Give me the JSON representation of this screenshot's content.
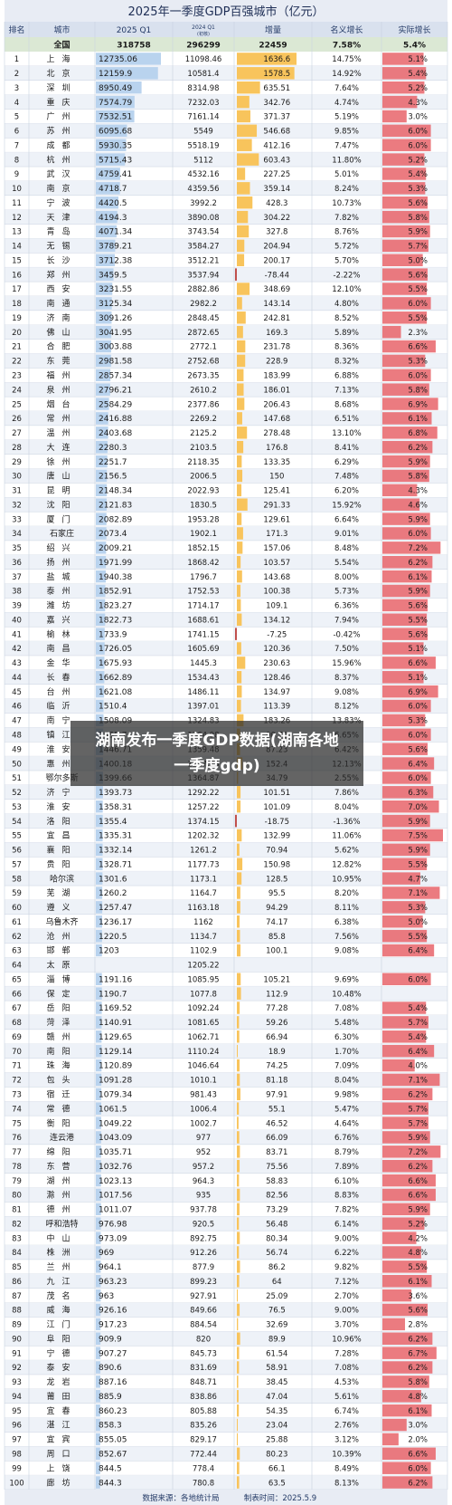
{
  "title": "2025年一季度GDP百强城市（亿元）",
  "chart_data": {
    "type": "table",
    "headers": {
      "rank": "排名",
      "city": "城市",
      "q1_2025": "2025 Q1",
      "q1_2024": "2024 Q1",
      "q1_2024_note": "(初核)",
      "increase": "增量",
      "nominal_growth": "名义增长",
      "real_growth": "实际增长"
    },
    "national": {
      "city": "全国",
      "q1_2025": "318758",
      "q1_2024": "296299",
      "increase": "22459",
      "nominal_growth": "7.58%",
      "real_growth": "5.4%"
    },
    "rows": [
      [
        "1",
        "上海",
        "12735.06",
        "11098.46",
        "1636.6",
        "14.75%",
        "5.1%"
      ],
      [
        "2",
        "北京",
        "12159.9",
        "10581.4",
        "1578.5",
        "14.92%",
        "5.4%"
      ],
      [
        "3",
        "深圳",
        "8950.49",
        "8314.98",
        "635.51",
        "7.64%",
        "5.2%"
      ],
      [
        "4",
        "重庆",
        "7574.79",
        "7232.03",
        "342.76",
        "4.74%",
        "4.3%"
      ],
      [
        "5",
        "广州",
        "7532.51",
        "7161.14",
        "371.37",
        "5.19%",
        "3.0%"
      ],
      [
        "6",
        "苏州",
        "6095.68",
        "5549",
        "546.68",
        "9.85%",
        "6.0%"
      ],
      [
        "7",
        "成都",
        "5930.35",
        "5518.19",
        "412.16",
        "7.47%",
        "6.0%"
      ],
      [
        "8",
        "杭州",
        "5715.43",
        "5112",
        "603.43",
        "11.80%",
        "5.2%"
      ],
      [
        "9",
        "武汉",
        "4759.41",
        "4532.16",
        "227.25",
        "5.01%",
        "5.4%"
      ],
      [
        "10",
        "南京",
        "4718.7",
        "4359.56",
        "359.14",
        "8.24%",
        "5.3%"
      ],
      [
        "11",
        "宁波",
        "4420.5",
        "3992.2",
        "428.3",
        "10.73%",
        "5.6%"
      ],
      [
        "12",
        "天津",
        "4194.3",
        "3890.08",
        "304.22",
        "7.82%",
        "5.8%"
      ],
      [
        "13",
        "青岛",
        "4071.34",
        "3743.54",
        "327.8",
        "8.76%",
        "5.9%"
      ],
      [
        "14",
        "无锡",
        "3789.21",
        "3584.27",
        "204.94",
        "5.72%",
        "5.7%"
      ],
      [
        "15",
        "长沙",
        "3712.38",
        "3512.21",
        "200.17",
        "5.70%",
        "5.0%"
      ],
      [
        "16",
        "郑州",
        "3459.5",
        "3537.94",
        "-78.44",
        "-2.22%",
        "5.6%"
      ],
      [
        "17",
        "西安",
        "3231.55",
        "2882.86",
        "348.69",
        "12.10%",
        "5.5%"
      ],
      [
        "18",
        "南通",
        "3125.34",
        "2982.2",
        "143.14",
        "4.80%",
        "6.0%"
      ],
      [
        "19",
        "济南",
        "3091.26",
        "2848.45",
        "242.81",
        "8.52%",
        "5.5%"
      ],
      [
        "20",
        "佛山",
        "3041.95",
        "2872.65",
        "169.3",
        "5.89%",
        "2.3%"
      ],
      [
        "21",
        "合肥",
        "3003.88",
        "2772.1",
        "231.78",
        "8.36%",
        "6.6%"
      ],
      [
        "22",
        "东莞",
        "2981.58",
        "2752.68",
        "228.9",
        "8.32%",
        "5.3%"
      ],
      [
        "23",
        "福州",
        "2857.34",
        "2673.35",
        "183.99",
        "6.88%",
        "6.0%"
      ],
      [
        "24",
        "泉州",
        "2796.21",
        "2610.2",
        "186.01",
        "7.13%",
        "5.8%"
      ],
      [
        "25",
        "烟台",
        "2584.29",
        "2377.86",
        "206.43",
        "8.68%",
        "6.9%"
      ],
      [
        "26",
        "常州",
        "2416.88",
        "2269.2",
        "147.68",
        "6.51%",
        "6.1%"
      ],
      [
        "27",
        "温州",
        "2403.68",
        "2125.2",
        "278.48",
        "13.10%",
        "6.8%"
      ],
      [
        "28",
        "大连",
        "2280.3",
        "2103.5",
        "176.8",
        "8.41%",
        "6.2%"
      ],
      [
        "29",
        "徐州",
        "2251.7",
        "2118.35",
        "133.35",
        "6.29%",
        "5.9%"
      ],
      [
        "30",
        "唐山",
        "2156.5",
        "2006.5",
        "150",
        "7.48%",
        "5.8%"
      ],
      [
        "31",
        "昆明",
        "2148.34",
        "2022.93",
        "125.41",
        "6.20%",
        "4.3%"
      ],
      [
        "32",
        "沈阳",
        "2121.83",
        "1830.5",
        "291.33",
        "15.92%",
        "4.6%"
      ],
      [
        "33",
        "厦门",
        "2082.89",
        "1953.28",
        "129.61",
        "6.64%",
        "5.9%"
      ],
      [
        "34",
        "石家庄",
        "2073.4",
        "1902.1",
        "171.3",
        "9.01%",
        "6.0%"
      ],
      [
        "35",
        "绍兴",
        "2009.21",
        "1852.15",
        "157.06",
        "8.48%",
        "7.2%"
      ],
      [
        "36",
        "扬州",
        "1971.99",
        "1868.42",
        "103.57",
        "5.54%",
        "6.2%"
      ],
      [
        "37",
        "盐城",
        "1940.38",
        "1796.7",
        "143.68",
        "8.00%",
        "6.1%"
      ],
      [
        "38",
        "泰州",
        "1852.91",
        "1752.53",
        "100.38",
        "5.73%",
        "5.9%"
      ],
      [
        "39",
        "潍坊",
        "1823.27",
        "1714.17",
        "109.1",
        "6.36%",
        "5.6%"
      ],
      [
        "40",
        "嘉兴",
        "1822.73",
        "1688.61",
        "134.12",
        "7.94%",
        "5.5%"
      ],
      [
        "41",
        "榆林",
        "1733.9",
        "1741.15",
        "-7.25",
        "-0.42%",
        "5.6%"
      ],
      [
        "42",
        "南昌",
        "1726.05",
        "1605.69",
        "120.36",
        "7.50%",
        "5.1%"
      ],
      [
        "43",
        "金华",
        "1675.93",
        "1445.3",
        "230.63",
        "15.96%",
        "6.6%"
      ],
      [
        "44",
        "长春",
        "1662.89",
        "1534.43",
        "128.46",
        "8.37%",
        "5.1%"
      ],
      [
        "45",
        "台州",
        "1621.08",
        "1486.11",
        "134.97",
        "9.08%",
        "6.9%"
      ],
      [
        "46",
        "临沂",
        "1510.4",
        "1397.01",
        "113.39",
        "8.12%",
        "6.0%"
      ],
      [
        "47",
        "南宁",
        "1508.09",
        "1324.83",
        "183.26",
        "13.83%",
        "5.3%"
      ],
      [
        "48",
        "镇江",
        "1455.7",
        "1364.98",
        "90.72",
        "6.65%",
        "6.0%"
      ],
      [
        "49",
        "淮安",
        "1446.71",
        "1359.48",
        "87.23",
        "6.42%",
        "5.6%"
      ],
      [
        "50",
        "惠州",
        "1400.18",
        "1247.78",
        "152.4",
        "12.13%",
        "6.4%"
      ],
      [
        "51",
        "鄂尔多斯",
        "1399.66",
        "1364.87",
        "34.79",
        "2.55%",
        "6.0%"
      ],
      [
        "52",
        "济宁",
        "1393.73",
        "1292.22",
        "101.51",
        "7.86%",
        "6.3%"
      ],
      [
        "53",
        "淮安",
        "1358.31",
        "1257.22",
        "101.09",
        "8.04%",
        "7.0%"
      ],
      [
        "54",
        "洛阳",
        "1355.4",
        "1374.15",
        "-18.75",
        "-1.36%",
        "5.9%"
      ],
      [
        "55",
        "宜昌",
        "1335.31",
        "1202.32",
        "132.99",
        "11.06%",
        "7.5%"
      ],
      [
        "56",
        "襄阳",
        "1332.14",
        "1261.2",
        "70.94",
        "5.62%",
        "5.9%"
      ],
      [
        "57",
        "贵阳",
        "1328.71",
        "1177.73",
        "150.98",
        "12.82%",
        "5.5%"
      ],
      [
        "58",
        "哈尔滨",
        "1301.6",
        "1173.1",
        "128.5",
        "10.95%",
        "4.7%"
      ],
      [
        "59",
        "芜湖",
        "1260.2",
        "1164.7",
        "95.5",
        "8.20%",
        "7.1%"
      ],
      [
        "60",
        "遵义",
        "1257.47",
        "1163.18",
        "94.29",
        "8.11%",
        "5.3%"
      ],
      [
        "61",
        "乌鲁木齐",
        "1236.17",
        "1162",
        "74.17",
        "6.38%",
        "5.0%"
      ],
      [
        "62",
        "沧州",
        "1220.5",
        "1134.7",
        "85.8",
        "7.56%",
        "5.5%"
      ],
      [
        "63",
        "邯郸",
        "1203",
        "1102.9",
        "100.1",
        "9.08%",
        "6.4%"
      ],
      [
        "64",
        "太原",
        "",
        "1205.22",
        "",
        "",
        ""
      ],
      [
        "65",
        "淄博",
        "1191.16",
        "1085.95",
        "105.21",
        "9.69%",
        "6.0%"
      ],
      [
        "66",
        "保定",
        "1190.7",
        "1077.8",
        "112.9",
        "10.48%",
        ""
      ],
      [
        "67",
        "岳阳",
        "1169.52",
        "1092.24",
        "77.28",
        "7.08%",
        "5.4%"
      ],
      [
        "68",
        "菏泽",
        "1140.91",
        "1081.65",
        "59.26",
        "5.48%",
        "5.7%"
      ],
      [
        "69",
        "赣州",
        "1129.65",
        "1062.71",
        "66.94",
        "6.30%",
        "5.4%"
      ],
      [
        "70",
        "南阳",
        "1129.14",
        "1110.24",
        "18.9",
        "1.70%",
        "6.4%"
      ],
      [
        "71",
        "珠海",
        "1120.89",
        "1046.64",
        "74.25",
        "7.09%",
        "4.0%"
      ],
      [
        "72",
        "包头",
        "1091.28",
        "1010.1",
        "81.18",
        "8.04%",
        "7.1%"
      ],
      [
        "73",
        "宿迁",
        "1079.34",
        "981.43",
        "97.91",
        "9.98%",
        "6.2%"
      ],
      [
        "74",
        "常德",
        "1061.5",
        "1006.4",
        "55.1",
        "5.47%",
        "5.7%"
      ],
      [
        "75",
        "衡阳",
        "1049.22",
        "1002.7",
        "46.52",
        "4.64%",
        "5.7%"
      ],
      [
        "76",
        "连云港",
        "1043.09",
        "977",
        "66.09",
        "6.76%",
        "5.9%"
      ],
      [
        "77",
        "绵阳",
        "1035.71",
        "952",
        "83.71",
        "8.79%",
        "7.2%"
      ],
      [
        "78",
        "东营",
        "1032.76",
        "957.2",
        "75.56",
        "7.89%",
        "6.2%"
      ],
      [
        "79",
        "湖州",
        "1023.13",
        "964.3",
        "58.83",
        "6.10%",
        "6.6%"
      ],
      [
        "80",
        "滁州",
        "1017.56",
        "935",
        "82.56",
        "8.83%",
        "6.6%"
      ],
      [
        "81",
        "德州",
        "1011.07",
        "937.78",
        "73.29",
        "7.82%",
        "5.9%"
      ],
      [
        "82",
        "呼和浩特",
        "976.98",
        "920.5",
        "56.48",
        "6.14%",
        "5.2%"
      ],
      [
        "83",
        "中山",
        "973.09",
        "892.75",
        "80.34",
        "9.00%",
        "4.2%"
      ],
      [
        "84",
        "株洲",
        "969",
        "912.26",
        "56.74",
        "6.22%",
        "4.8%"
      ],
      [
        "85",
        "兰州",
        "964.1",
        "877.9",
        "86.2",
        "9.82%",
        "5.5%"
      ],
      [
        "86",
        "九江",
        "963.23",
        "899.23",
        "64",
        "7.12%",
        "6.1%"
      ],
      [
        "87",
        "茂名",
        "963",
        "927.91",
        "25.09",
        "2.70%",
        "3.6%"
      ],
      [
        "88",
        "威海",
        "926.16",
        "849.66",
        "76.5",
        "9.00%",
        "5.6%"
      ],
      [
        "89",
        "江门",
        "917.23",
        "884.54",
        "32.69",
        "3.70%",
        "2.8%"
      ],
      [
        "90",
        "阜阳",
        "909.9",
        "820",
        "89.9",
        "10.96%",
        "6.2%"
      ],
      [
        "91",
        "宁德",
        "907.27",
        "845.73",
        "61.54",
        "7.28%",
        "6.7%"
      ],
      [
        "92",
        "泰安",
        "890.6",
        "831.69",
        "58.91",
        "7.08%",
        "6.2%"
      ],
      [
        "93",
        "龙岩",
        "887.16",
        "848.71",
        "38.45",
        "4.53%",
        "5.8%"
      ],
      [
        "94",
        "莆田",
        "885.9",
        "838.86",
        "47.04",
        "5.61%",
        "4.8%"
      ],
      [
        "95",
        "宜春",
        "860.23",
        "805.88",
        "54.35",
        "6.74%",
        "6.1%"
      ],
      [
        "96",
        "湛江",
        "858.3",
        "835.26",
        "23.04",
        "2.76%",
        "3.0%"
      ],
      [
        "97",
        "宜宾",
        "855.05",
        "829.17",
        "25.88",
        "3.12%",
        "2.0%"
      ],
      [
        "98",
        "周口",
        "852.67",
        "772.44",
        "80.23",
        "10.39%",
        "6.6%"
      ],
      [
        "99",
        "上饶",
        "844.5",
        "778.4",
        "66.1",
        "8.49%",
        "6.0%"
      ],
      [
        "100",
        "廊坊",
        "844.3",
        "780.8",
        "63.5",
        "8.13%",
        "6.2%"
      ]
    ]
  },
  "footer": {
    "source": "数据来源：各地统计局",
    "date": "制表时间：2025.5.9"
  },
  "overlay": {
    "line1": "湖南发布一季度GDP数据(湖南各地",
    "line2": "一季度gdp)"
  },
  "colors": {
    "header_bg": "#e8ecf4",
    "row_alt": "#eef2f8",
    "gdp_bar": "#b9d3ee",
    "increase_bar": "#f8c45c",
    "increase_neg": "#c0504d",
    "growth_bar": "#e8646a",
    "grid": "#c9d2e0"
  }
}
